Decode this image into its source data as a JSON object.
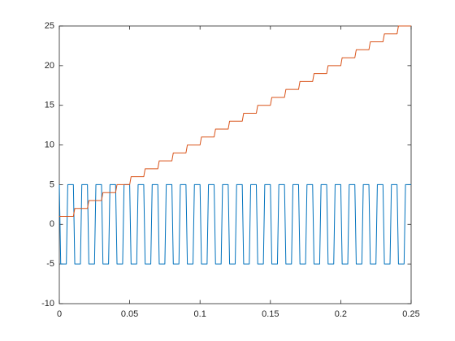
{
  "chart_data": {
    "type": "line",
    "x": [
      0,
      0.001,
      0.005,
      0.006,
      0.01,
      0.011,
      0.015,
      0.016,
      0.02,
      0.021,
      0.025,
      0.026,
      0.03,
      0.031,
      0.035,
      0.036,
      0.04,
      0.041,
      0.045,
      0.046,
      0.05,
      0.051,
      0.055,
      0.056,
      0.06,
      0.061,
      0.065,
      0.066,
      0.07,
      0.071,
      0.075,
      0.076,
      0.08,
      0.081,
      0.085,
      0.086,
      0.09,
      0.091,
      0.095,
      0.096,
      0.1,
      0.101,
      0.105,
      0.106,
      0.11,
      0.111,
      0.115,
      0.116,
      0.12,
      0.121,
      0.125,
      0.126,
      0.13,
      0.131,
      0.135,
      0.136,
      0.14,
      0.141,
      0.145,
      0.146,
      0.15,
      0.151,
      0.155,
      0.156,
      0.16,
      0.161,
      0.165,
      0.166,
      0.17,
      0.171,
      0.175,
      0.176,
      0.18,
      0.181,
      0.185,
      0.186,
      0.19,
      0.191,
      0.195,
      0.196,
      0.2,
      0.201,
      0.205,
      0.206,
      0.21,
      0.211,
      0.215,
      0.216,
      0.22,
      0.221,
      0.225,
      0.226,
      0.23,
      0.231,
      0.235,
      0.236,
      0.24,
      0.241,
      0.245,
      0.246,
      0.25
    ],
    "series": [
      {
        "color": "#0072bd",
        "values": [
          5,
          -5,
          -5,
          5,
          5,
          -5,
          -5,
          5,
          5,
          -5,
          -5,
          5,
          5,
          -5,
          -5,
          5,
          5,
          -5,
          -5,
          5,
          5,
          -5,
          -5,
          5,
          5,
          -5,
          -5,
          5,
          5,
          -5,
          -5,
          5,
          5,
          -5,
          -5,
          5,
          5,
          -5,
          -5,
          5,
          5,
          -5,
          -5,
          5,
          5,
          -5,
          -5,
          5,
          5,
          -5,
          -5,
          5,
          5,
          -5,
          -5,
          5,
          5,
          -5,
          -5,
          5,
          5,
          -5,
          -5,
          5,
          5,
          -5,
          -5,
          5,
          5,
          -5,
          -5,
          5,
          5,
          -5,
          -5,
          5,
          5,
          -5,
          -5,
          5,
          5,
          -5,
          -5,
          5,
          5,
          -5,
          -5,
          5,
          5,
          -5,
          -5,
          5,
          5,
          -5,
          -5,
          5,
          5,
          -5,
          -5,
          5,
          5
        ]
      },
      {
        "color": "#d95319",
        "values": [
          1,
          1,
          1,
          1,
          1,
          2,
          2,
          2,
          2,
          3,
          3,
          3,
          3,
          4,
          4,
          4,
          4,
          5,
          5,
          5,
          5,
          6,
          6,
          6,
          6,
          7,
          7,
          7,
          7,
          8,
          8,
          8,
          8,
          9,
          9,
          9,
          9,
          10,
          10,
          10,
          10,
          11,
          11,
          11,
          11,
          12,
          12,
          12,
          12,
          13,
          13,
          13,
          13,
          14,
          14,
          14,
          14,
          15,
          15,
          15,
          15,
          16,
          16,
          16,
          16,
          17,
          17,
          17,
          17,
          18,
          18,
          18,
          18,
          19,
          19,
          19,
          19,
          20,
          20,
          20,
          20,
          21,
          21,
          21,
          21,
          22,
          22,
          22,
          22,
          23,
          23,
          23,
          23,
          24,
          24,
          24,
          24,
          25,
          25,
          25,
          25
        ]
      }
    ],
    "xlim": [
      0,
      0.25
    ],
    "xticks": [
      0,
      0.05,
      0.1,
      0.15,
      0.2,
      0.25
    ],
    "ylim": [
      -10,
      25
    ],
    "yticks": [
      -10,
      -5,
      0,
      5,
      10,
      15,
      20,
      25
    ],
    "grid": false
  }
}
